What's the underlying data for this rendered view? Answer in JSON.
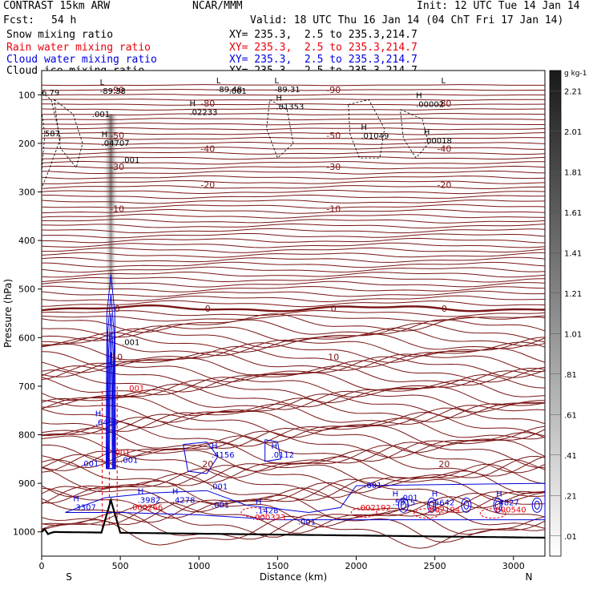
{
  "header": {
    "model": "CONTRAST 15km ARW",
    "org": "NCAR/MMM",
    "init": "Init: 12 UTC Tue 14 Jan 14",
    "fcst_label": "Fcst:",
    "fcst_value": "54 h",
    "valid": "Valid: 18 UTC Thu 16 Jan 14 (04 ChT Fri 17 Jan 14)",
    "fields": [
      {
        "name": "Snow mixing ratio",
        "xy": "XY= 235.3,  2.5 to 235.3,214.7",
        "color": "#000000"
      },
      {
        "name": "Rain water mixing ratio",
        "xy": "XY= 235.3,  2.5 to 235.3,214.7",
        "color": "#e8000b"
      },
      {
        "name": "Cloud water mixing ratio",
        "xy": "XY= 235.3,  2.5 to 235.3,214.7",
        "color": "#0000dd"
      },
      {
        "name": "Cloud ice mixing ratio",
        "xy": "XY= 235.3,  2.5 to 235.3,214.7",
        "color": "#000000"
      }
    ]
  },
  "chart_data": {
    "type": "contour",
    "xlabel": "Distance (km)",
    "ylabel": "Pressure (hPa)",
    "xlim": [
      0,
      3200
    ],
    "ylim": [
      1050,
      50
    ],
    "x_ticks": [
      0,
      500,
      1000,
      1500,
      2000,
      2500,
      3000
    ],
    "y_ticks": [
      100,
      200,
      300,
      400,
      500,
      600,
      700,
      800,
      900,
      1000
    ],
    "x_end_labels": {
      "left": "S",
      "right": "N"
    },
    "temperature_isotherms": [
      {
        "label": "-90",
        "p": 90
      },
      {
        "label": "-80",
        "p": 118
      },
      {
        "label": "-50",
        "p": 184
      },
      {
        "label": "-40",
        "p": 211
      },
      {
        "label": "-30",
        "p": 248
      },
      {
        "label": "-20",
        "p": 285
      },
      {
        "label": "-10",
        "p": 335
      },
      {
        "label": "0",
        "p": 540
      },
      {
        "label": "10",
        "p": 640
      },
      {
        "label": "20",
        "p": 860
      }
    ],
    "colorbar": {
      "unit": "g kg-1",
      "labels": [
        "2.21",
        "2.01",
        "1.81",
        "1.61",
        "1.41",
        "1.21",
        "1.01",
        ".81",
        ".61",
        ".41",
        ".21",
        ".01"
      ]
    },
    "extrema_labels": [
      {
        "type": "L",
        "value": "-89.38",
        "x": 370,
        "p": 93
      },
      {
        "type": "L",
        "value": "-89.48",
        "x": 1110,
        "p": 90
      },
      {
        "type": "L",
        "value": "-89.31",
        "x": 1480,
        "p": 90
      },
      {
        "type": "L",
        "value": "",
        "x": 2540,
        "p": 90
      },
      {
        "type": "H",
        "value": ".02233",
        "x": 940,
        "p": 137
      },
      {
        "type": "H",
        "value": ".01353",
        "x": 1490,
        "p": 125
      },
      {
        "type": "H",
        "value": ".00002",
        "x": 2380,
        "p": 120
      },
      {
        "type": "H",
        "value": ".04707",
        "x": 380,
        "p": 200
      },
      {
        "type": "H",
        "value": ".01049",
        "x": 2030,
        "p": 185
      },
      {
        "type": "H",
        "value": ".00018",
        "x": 2430,
        "p": 195
      },
      {
        "type": "H",
        "value": ".6456",
        "x": 340,
        "p": 775
      },
      {
        "type": "H",
        "value": ".4156",
        "x": 1080,
        "p": 842
      },
      {
        "type": "H",
        "value": ".0112",
        "x": 1460,
        "p": 842
      },
      {
        "type": "H",
        "value": ".3307",
        "x": 200,
        "p": 950
      },
      {
        "type": "H",
        "value": ".3982",
        "x": 610,
        "p": 935
      },
      {
        "type": "H",
        "value": ".4278",
        "x": 830,
        "p": 935
      },
      {
        "type": "H",
        "value": ".1428",
        "x": 1360,
        "p": 957
      },
      {
        "type": "H",
        "value": ".5915",
        "x": 2230,
        "p": 940
      },
      {
        "type": "H",
        "value": ".5642",
        "x": 2480,
        "p": 940
      },
      {
        "type": "H",
        "value": ".4827",
        "x": 2890,
        "p": 940
      }
    ],
    "rain_labels": [
      {
        "value": ".000266",
        "x": 560,
        "p": 955
      },
      {
        "value": ".000323",
        "x": 1340,
        "p": 976
      },
      {
        "value": ".002192",
        "x": 2010,
        "p": 956
      },
      {
        "value": ".002194",
        "x": 2450,
        "p": 960
      },
      {
        "value": ".000540",
        "x": 2870,
        "p": 960
      },
      {
        "value": ".001",
        "x": 540,
        "p": 710
      },
      {
        "value": ".001",
        "x": 450,
        "p": 842
      }
    ],
    "small_value_labels": [
      {
        "value": ".001",
        "x": 320,
        "p": 146
      },
      {
        "value": ".001",
        "x": 1190,
        "p": 98
      },
      {
        "value": "587",
        "x": 20,
        "p": 185
      },
      {
        "value": "6.79",
        "x": -10,
        "p": 101
      },
      {
        "value": ".001",
        "x": 510,
        "p": 240
      },
      {
        "value": ".001",
        "x": 510,
        "p": 615
      },
      {
        "value": ".001",
        "x": 500,
        "p": 858
      },
      {
        "value": ".001",
        "x": 250,
        "p": 865
      },
      {
        "value": ".001",
        "x": 1070,
        "p": 912
      },
      {
        "value": ".001",
        "x": 1080,
        "p": 950
      },
      {
        "value": ".001",
        "x": 1630,
        "p": 985
      },
      {
        "value": ".001",
        "x": 2050,
        "p": 910
      },
      {
        "value": ".001",
        "x": 2280,
        "p": 935
      }
    ],
    "terrain_peak": {
      "x": 440,
      "p": 935
    }
  }
}
